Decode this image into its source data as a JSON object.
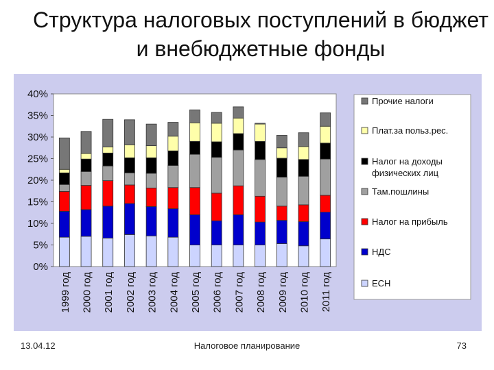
{
  "slide": {
    "title": "Структура налоговых поступлений в бюджет и внебюджетные фонды",
    "footer_date": "13.04.12",
    "footer_center": "Налоговое планирование",
    "page_number": "73"
  },
  "chart_data": {
    "type": "bar",
    "stacked": true,
    "categories": [
      "1999 год",
      "2000 год",
      "2001 год",
      "2002 год",
      "2003 год",
      "2004 год",
      "2005 год",
      "2006 год",
      "2007 год",
      "2008 год",
      "2009 год",
      "2010 год",
      "2011 год"
    ],
    "ylim": [
      0,
      40
    ],
    "yticks": [
      0,
      5,
      10,
      15,
      20,
      25,
      30,
      35,
      40
    ],
    "ytick_labels": [
      "0%",
      "5%",
      "10%",
      "15%",
      "20%",
      "25%",
      "30%",
      "35%",
      "40%"
    ],
    "grid": false,
    "legend_position": "right",
    "background_color": "#ccccee",
    "series": [
      {
        "name": "ЕСН",
        "color": "#ccd4ff",
        "values": [
          6.8,
          7.0,
          6.6,
          7.4,
          7.1,
          6.8,
          5.0,
          5.0,
          5.0,
          5.0,
          5.3,
          4.8,
          6.4
        ]
      },
      {
        "name": "НДС",
        "color": "#0000cc",
        "values": [
          6.0,
          6.2,
          7.4,
          7.2,
          6.8,
          6.6,
          7.0,
          5.6,
          7.0,
          5.3,
          5.4,
          5.6,
          6.2
        ]
      },
      {
        "name": "Налог на прибыль",
        "color": "#ff0000",
        "values": [
          4.6,
          5.6,
          5.9,
          4.3,
          4.3,
          4.9,
          6.3,
          6.4,
          6.7,
          6.0,
          3.3,
          3.9,
          3.9
        ]
      },
      {
        "name": "Там.пошлины",
        "color": "#a0a0a0",
        "values": [
          1.6,
          3.2,
          3.4,
          2.8,
          3.4,
          5.1,
          7.7,
          8.3,
          8.3,
          8.5,
          6.7,
          6.6,
          8.4
        ]
      },
      {
        "name": "Налог на доходы физических лиц",
        "color": "#000000",
        "values": [
          2.7,
          2.9,
          3.0,
          3.5,
          3.6,
          3.4,
          3.0,
          3.6,
          3.8,
          4.2,
          4.4,
          3.9,
          3.7
        ]
      },
      {
        "name": "Плат.за польз.рес.",
        "color": "#ffffaa",
        "values": [
          0.8,
          1.3,
          1.4,
          3.0,
          2.8,
          3.4,
          4.3,
          4.3,
          3.6,
          4.0,
          2.4,
          3.0,
          3.9
        ]
      },
      {
        "name": "Прочие налоги",
        "color": "#777777",
        "values": [
          7.3,
          5.1,
          6.4,
          5.8,
          5.0,
          3.2,
          3.0,
          2.5,
          2.6,
          0.2,
          2.9,
          3.2,
          3.1
        ]
      }
    ],
    "legend": [
      "Прочие налоги",
      "Плат.за польз.рес.",
      "Налог на доходы физических лиц",
      "Там.пошлины",
      "Налог на прибыль",
      "НДС",
      "ЕСН"
    ]
  }
}
